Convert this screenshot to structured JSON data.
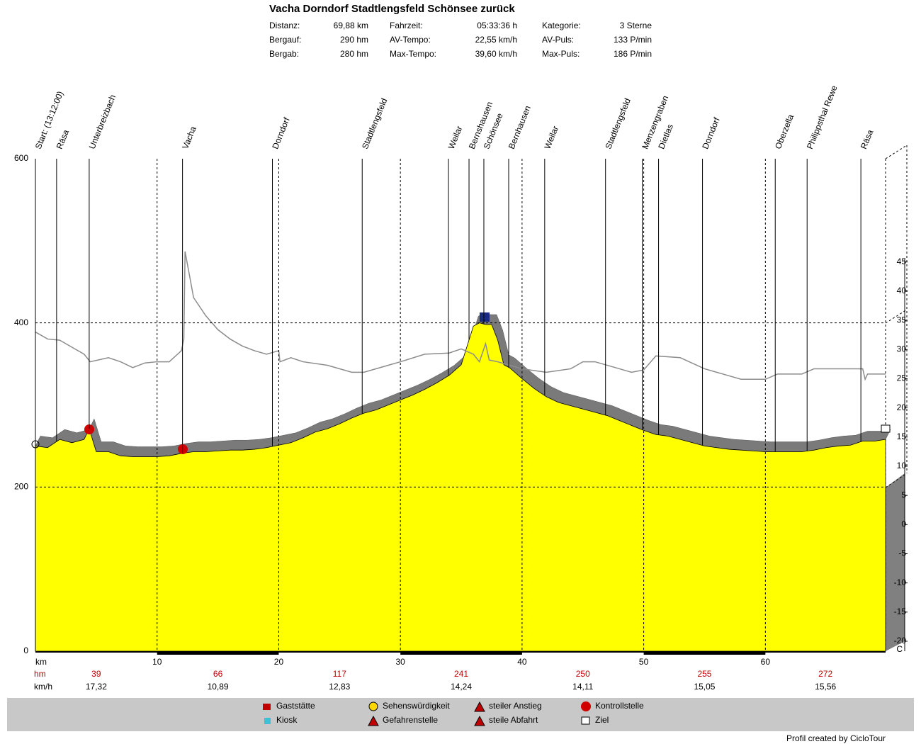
{
  "chart_data": {
    "type": "area",
    "title": "Vacha Dorndorf Stadtlengsfeld Schönsee zurück",
    "stats": [
      [
        "Distanz:",
        "69,88 km",
        "Fahrzeit:",
        "05:33:36 h",
        "Kategorie:",
        "3 Sterne"
      ],
      [
        "Bergauf:",
        "290 hm",
        "AV-Tempo:",
        "22,55 km/h",
        "AV-Puls:",
        "133 P/min"
      ],
      [
        "Bergab:",
        "280 hm",
        "Max-Tempo:",
        "39,60 km/h",
        "Max-Puls:",
        "186 P/min"
      ]
    ],
    "waypoints": [
      {
        "label": "Start: (13:12:00)",
        "km": 0
      },
      {
        "label": "Räsa",
        "km": 1.74
      },
      {
        "label": "Unterbreizbach",
        "km": 4.42
      },
      {
        "label": "Vacha",
        "km": 12.09
      },
      {
        "label": "Dorndorf",
        "km": 19.48
      },
      {
        "label": "Stadtlengsfeld",
        "km": 26.86
      },
      {
        "label": "Weilar",
        "km": 33.95
      },
      {
        "label": "Bernshausen",
        "km": 35.64
      },
      {
        "label": "Schönsee",
        "km": 36.86
      },
      {
        "label": "Bernhausen",
        "km": 38.9
      },
      {
        "label": "Weilar",
        "km": 41.86
      },
      {
        "label": "Stadtlengsfeld",
        "km": 46.86
      },
      {
        "label": "Menzengraben",
        "km": 49.88
      },
      {
        "label": "Dietlas",
        "km": 51.22
      },
      {
        "label": "Dorndorf",
        "km": 54.83
      },
      {
        "label": "Oberzella",
        "km": 60.81
      },
      {
        "label": "Philippsthal Rewe",
        "km": 63.43
      },
      {
        "label": "Räsa",
        "km": 67.85
      }
    ],
    "series": [
      {
        "type": "area",
        "color": "#ffff00",
        "x": [
          0,
          1,
          2,
          3,
          4,
          4.42,
          5,
          6,
          7,
          8,
          9,
          10,
          11,
          12,
          13,
          14,
          15,
          16,
          17,
          18,
          19,
          20,
          21,
          22,
          23,
          24,
          25,
          26,
          27,
          28,
          29,
          30,
          31,
          32,
          33,
          34,
          35,
          36,
          36.5,
          37,
          37.5,
          38,
          38.5,
          39,
          40,
          41,
          42,
          43,
          44,
          45,
          46,
          47,
          48,
          49,
          50,
          51,
          52,
          53,
          54,
          55,
          56,
          57,
          58,
          59,
          60,
          61,
          62,
          63,
          64,
          65,
          66,
          67,
          68,
          69,
          69.88
        ],
        "values": [
          250,
          248,
          258,
          254,
          258,
          271,
          243,
          243,
          238,
          237,
          237,
          237,
          238,
          241,
          243,
          243,
          244,
          245,
          245,
          246,
          248,
          251,
          254,
          260,
          267,
          271,
          277,
          284,
          290,
          294,
          300,
          306,
          312,
          319,
          327,
          336,
          349,
          396,
          400,
          398,
          398,
          379,
          349,
          345,
          332,
          320,
          310,
          303,
          299,
          295,
          291,
          287,
          281,
          275,
          269,
          264,
          262,
          258,
          254,
          250,
          248,
          246,
          245,
          244,
          243,
          243,
          243,
          243,
          245,
          248,
          250,
          251,
          256,
          256,
          258
        ]
      },
      {
        "type": "line",
        "axis": "y2",
        "color": "#8c8c8c",
        "x": [
          0,
          1,
          2,
          3,
          4,
          4.5,
          6,
          7,
          8,
          9,
          10,
          11,
          12,
          12.2,
          12.3,
          13,
          14,
          15,
          16,
          17,
          18,
          19,
          20,
          20.1,
          21,
          22,
          24,
          26,
          27,
          29,
          30,
          32,
          34,
          35,
          36,
          36.5,
          37,
          37.3,
          38,
          39,
          40,
          42,
          44,
          45,
          46,
          48,
          49,
          50,
          51,
          53,
          55,
          57,
          58,
          60,
          61,
          63,
          64,
          68,
          68.2,
          68.4,
          69.88
        ],
        "values": [
          33,
          31.8,
          31.6,
          30.4,
          29.2,
          27.9,
          28.6,
          27.9,
          26.9,
          27.7,
          27.9,
          27.9,
          29.8,
          31.8,
          46.8,
          38.9,
          35.8,
          33.4,
          31.8,
          30.6,
          29.8,
          29.2,
          29.8,
          27.9,
          28.6,
          27.9,
          27.3,
          26.1,
          26.1,
          27.3,
          27.9,
          29.2,
          29.4,
          30.1,
          29.2,
          27.9,
          31,
          28.2,
          27.9,
          27.3,
          26.7,
          26.1,
          26.7,
          27.9,
          27.9,
          26.7,
          26.1,
          26.5,
          28.9,
          28.6,
          26.7,
          25.5,
          24.9,
          24.9,
          25.8,
          25.8,
          26.7,
          26.7,
          24.9,
          25.8,
          25.8
        ]
      }
    ],
    "xlim": [
      0,
      69.88
    ],
    "xticks": [
      {
        "value": 0,
        "label": "km"
      },
      10,
      20,
      30,
      40,
      50,
      60
    ],
    "ylim": [
      0,
      600
    ],
    "yticks": [
      0,
      200,
      400,
      600
    ],
    "y2lim": [
      -21.7,
      62.7
    ],
    "y2ticks": [
      45,
      40,
      35,
      30,
      25,
      20,
      15,
      10,
      5,
      0,
      -5,
      -10,
      -15,
      -20
    ],
    "y2_unit": "C",
    "grid": true,
    "summary": {
      "hm_label": "hm",
      "hm": [
        39,
        66,
        117,
        241,
        250,
        255,
        272
      ],
      "speed_label": "km/h",
      "speed": [
        "17,32",
        "10,89",
        "12,83",
        "14,24",
        "14,11",
        "15,05",
        "15,56"
      ]
    },
    "legend": [
      "Gaststätte",
      "Sehenswürdigkeit",
      "steiler Anstieg",
      "Kontrollstelle",
      "Kiosk",
      "Gefahrenstelle",
      "steile Abfahrt",
      "Ziel"
    ],
    "footer": "Profil created by CicloTour"
  }
}
